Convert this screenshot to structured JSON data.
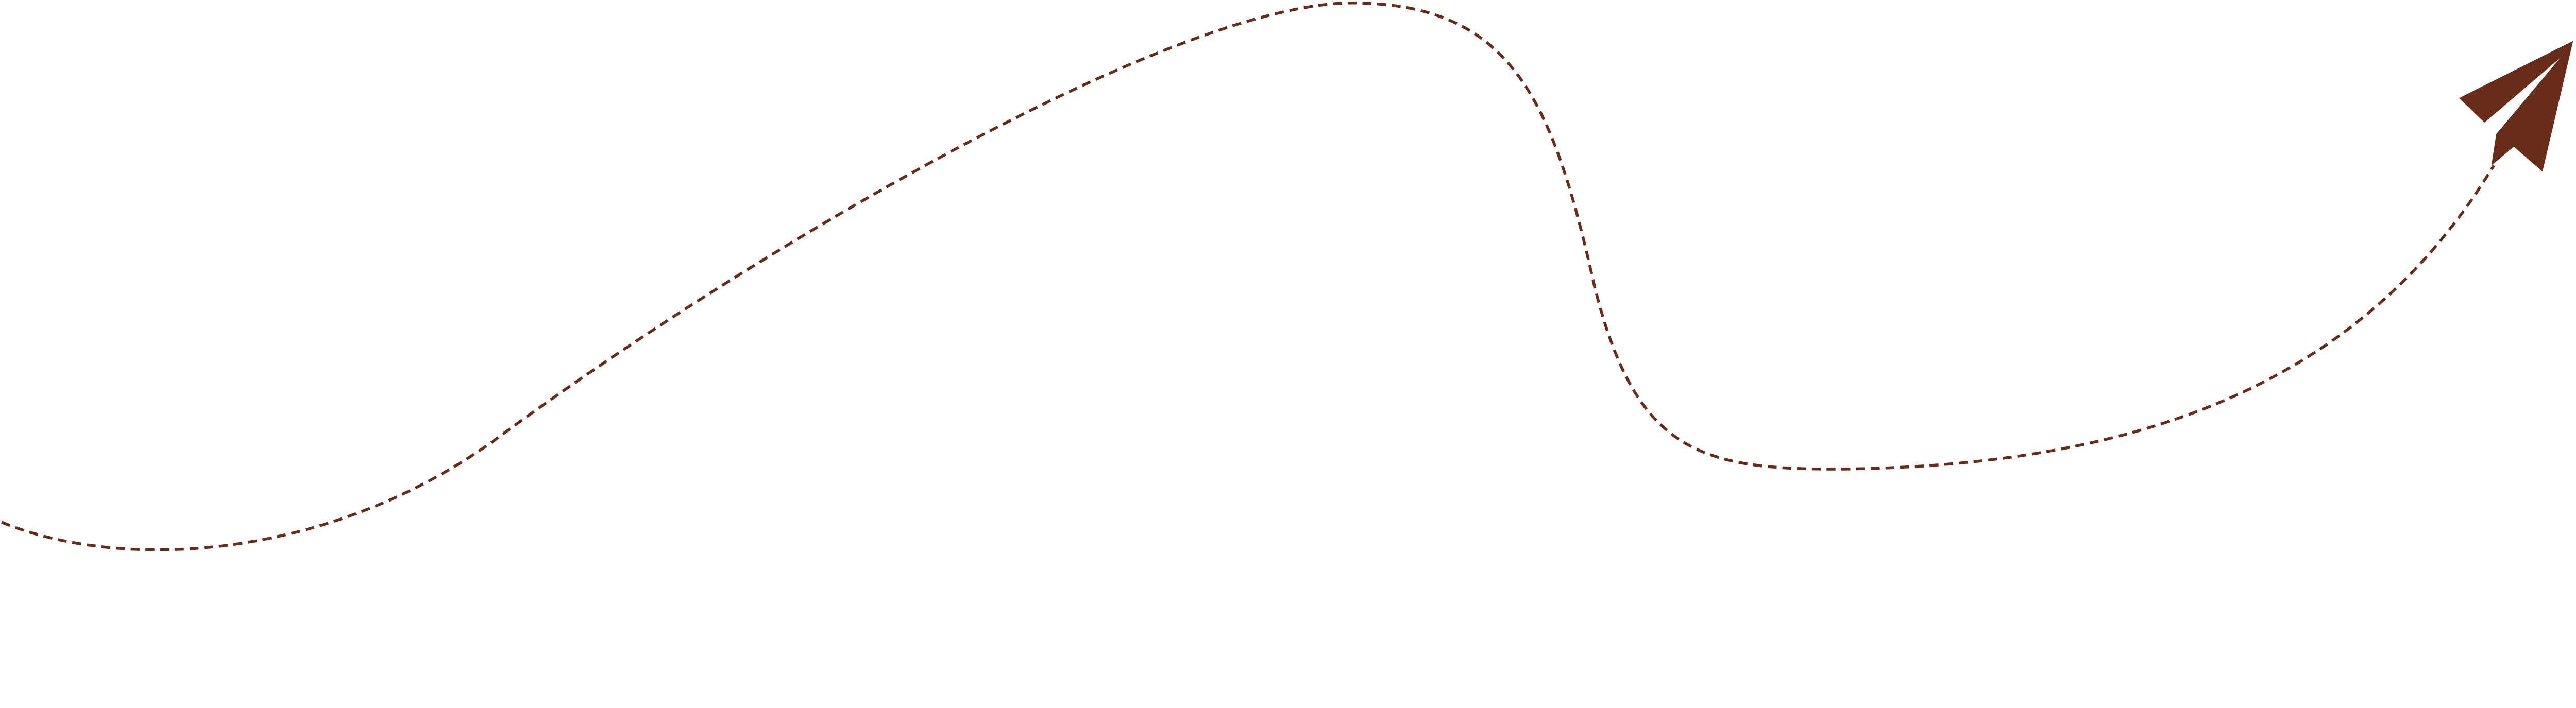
{
  "illustration": {
    "icon": "paper-plane-icon",
    "path_style": "dashed",
    "colors": {
      "accent": "#682c1b",
      "background": "#ffffff"
    }
  }
}
